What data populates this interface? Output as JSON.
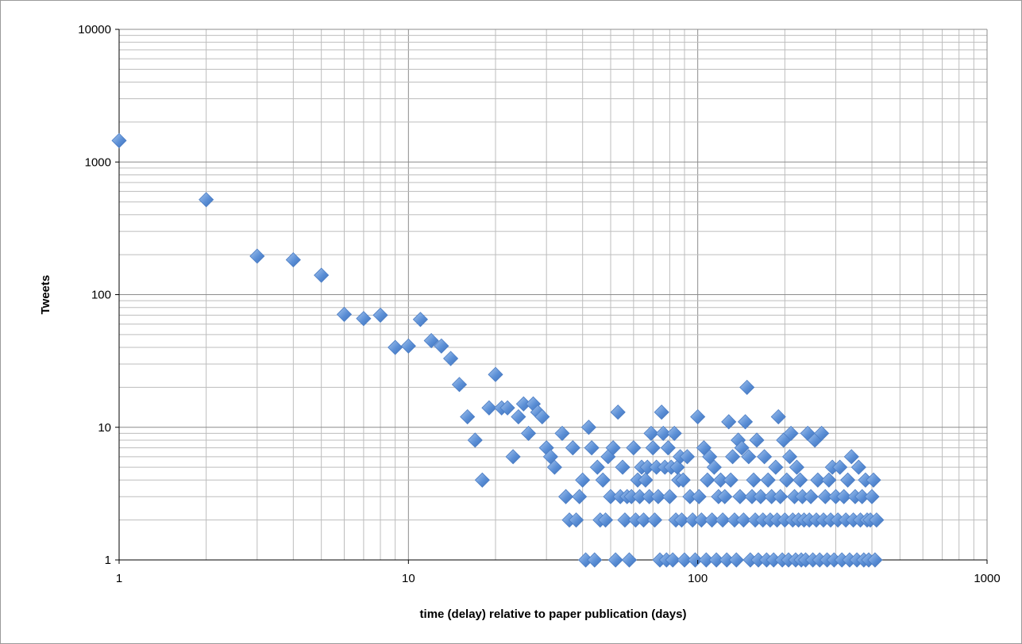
{
  "chart_data": {
    "type": "scatter",
    "title": "",
    "xlabel": "time (delay) relative to paper publication (days)",
    "ylabel": "Tweets",
    "x_scale": "log",
    "y_scale": "log",
    "xlim": [
      1,
      1000
    ],
    "ylim": [
      1,
      10000
    ],
    "x_ticks": [
      "1",
      "10",
      "100",
      "1000"
    ],
    "y_ticks": [
      "1",
      "10",
      "100",
      "1000",
      "10000"
    ],
    "grid": true,
    "legend": "none",
    "marker": "diamond",
    "marker_color": "#5b8fd6",
    "series": [
      {
        "points": [
          [
            1,
            1450
          ],
          [
            2,
            520
          ],
          [
            3,
            195
          ],
          [
            4,
            183
          ],
          [
            5,
            140
          ],
          [
            6,
            71
          ],
          [
            7,
            66
          ],
          [
            8,
            70
          ],
          [
            9,
            40
          ],
          [
            10,
            41
          ],
          [
            11,
            65
          ],
          [
            12,
            45
          ],
          [
            13,
            41
          ],
          [
            14,
            33
          ],
          [
            15,
            21
          ],
          [
            16,
            12
          ],
          [
            17,
            8
          ],
          [
            18,
            4
          ],
          [
            19,
            14
          ],
          [
            20,
            25
          ],
          [
            21,
            14
          ],
          [
            22,
            14
          ],
          [
            23,
            6
          ],
          [
            24,
            12
          ],
          [
            25,
            15
          ],
          [
            26,
            9
          ],
          [
            27,
            15
          ],
          [
            28,
            13
          ],
          [
            29,
            12
          ],
          [
            30,
            7
          ],
          [
            31,
            6
          ],
          [
            32,
            5
          ],
          [
            34,
            9
          ],
          [
            35,
            3
          ],
          [
            36,
            2
          ],
          [
            37,
            7
          ],
          [
            38,
            2
          ],
          [
            39,
            3
          ],
          [
            40,
            4
          ],
          [
            41,
            1
          ],
          [
            42,
            10
          ],
          [
            43,
            7
          ],
          [
            44,
            1
          ],
          [
            45,
            5
          ],
          [
            46,
            2
          ],
          [
            47,
            4
          ],
          [
            48,
            2
          ],
          [
            49,
            6
          ],
          [
            50,
            3
          ],
          [
            51,
            7
          ],
          [
            52,
            1
          ],
          [
            53,
            13
          ],
          [
            54,
            3
          ],
          [
            55,
            5
          ],
          [
            56,
            2
          ],
          [
            57,
            3
          ],
          [
            58,
            1
          ],
          [
            59,
            3
          ],
          [
            60,
            7
          ],
          [
            61,
            2
          ],
          [
            62,
            4
          ],
          [
            63,
            3
          ],
          [
            64,
            5
          ],
          [
            65,
            2
          ],
          [
            66,
            4
          ],
          [
            67,
            5
          ],
          [
            68,
            3
          ],
          [
            69,
            9
          ],
          [
            70,
            7
          ],
          [
            71,
            2
          ],
          [
            72,
            5
          ],
          [
            73,
            3
          ],
          [
            74,
            1
          ],
          [
            75,
            13
          ],
          [
            76,
            9
          ],
          [
            77,
            5
          ],
          [
            78,
            1
          ],
          [
            79,
            7
          ],
          [
            80,
            3
          ],
          [
            81,
            5
          ],
          [
            82,
            1
          ],
          [
            83,
            9
          ],
          [
            84,
            2
          ],
          [
            85,
            5
          ],
          [
            86,
            4
          ],
          [
            87,
            6
          ],
          [
            88,
            2
          ],
          [
            89,
            4
          ],
          [
            90,
            1
          ],
          [
            92,
            6
          ],
          [
            94,
            3
          ],
          [
            96,
            2
          ],
          [
            98,
            1
          ],
          [
            100,
            12
          ],
          [
            101,
            3
          ],
          [
            103,
            2
          ],
          [
            105,
            7
          ],
          [
            107,
            1
          ],
          [
            108,
            4
          ],
          [
            110,
            6
          ],
          [
            112,
            2
          ],
          [
            114,
            5
          ],
          [
            116,
            1
          ],
          [
            118,
            3
          ],
          [
            120,
            4
          ],
          [
            122,
            2
          ],
          [
            124,
            3
          ],
          [
            126,
            1
          ],
          [
            128,
            11
          ],
          [
            130,
            4
          ],
          [
            132,
            6
          ],
          [
            134,
            2
          ],
          [
            136,
            1
          ],
          [
            138,
            8
          ],
          [
            140,
            3
          ],
          [
            142,
            7
          ],
          [
            144,
            2
          ],
          [
            146,
            11
          ],
          [
            148,
            20
          ],
          [
            150,
            6
          ],
          [
            152,
            1
          ],
          [
            154,
            3
          ],
          [
            156,
            4
          ],
          [
            158,
            2
          ],
          [
            160,
            8
          ],
          [
            162,
            1
          ],
          [
            165,
            3
          ],
          [
            168,
            2
          ],
          [
            170,
            6
          ],
          [
            173,
            1
          ],
          [
            175,
            4
          ],
          [
            178,
            2
          ],
          [
            180,
            3
          ],
          [
            183,
            1
          ],
          [
            186,
            5
          ],
          [
            188,
            2
          ],
          [
            190,
            12
          ],
          [
            193,
            3
          ],
          [
            196,
            1
          ],
          [
            198,
            8
          ],
          [
            200,
            2
          ],
          [
            203,
            4
          ],
          [
            206,
            1
          ],
          [
            208,
            6
          ],
          [
            210,
            9
          ],
          [
            213,
            2
          ],
          [
            216,
            3
          ],
          [
            218,
            1
          ],
          [
            220,
            5
          ],
          [
            223,
            2
          ],
          [
            226,
            4
          ],
          [
            228,
            1
          ],
          [
            230,
            3
          ],
          [
            233,
            2
          ],
          [
            236,
            1
          ],
          [
            240,
            9
          ],
          [
            243,
            2
          ],
          [
            246,
            3
          ],
          [
            250,
            1
          ],
          [
            254,
            8
          ],
          [
            257,
            2
          ],
          [
            260,
            4
          ],
          [
            264,
            1
          ],
          [
            268,
            9
          ],
          [
            272,
            2
          ],
          [
            276,
            3
          ],
          [
            280,
            1
          ],
          [
            284,
            4
          ],
          [
            288,
            2
          ],
          [
            292,
            5
          ],
          [
            296,
            1
          ],
          [
            300,
            3
          ],
          [
            305,
            2
          ],
          [
            310,
            5
          ],
          [
            315,
            1
          ],
          [
            320,
            3
          ],
          [
            325,
            2
          ],
          [
            330,
            4
          ],
          [
            335,
            1
          ],
          [
            340,
            6
          ],
          [
            345,
            2
          ],
          [
            350,
            3
          ],
          [
            355,
            1
          ],
          [
            360,
            5
          ],
          [
            365,
            2
          ],
          [
            370,
            3
          ],
          [
            375,
            1
          ],
          [
            380,
            4
          ],
          [
            385,
            2
          ],
          [
            390,
            1
          ],
          [
            395,
            2
          ],
          [
            400,
            3
          ],
          [
            405,
            4
          ],
          [
            410,
            1
          ],
          [
            415,
            2
          ]
        ]
      }
    ]
  }
}
